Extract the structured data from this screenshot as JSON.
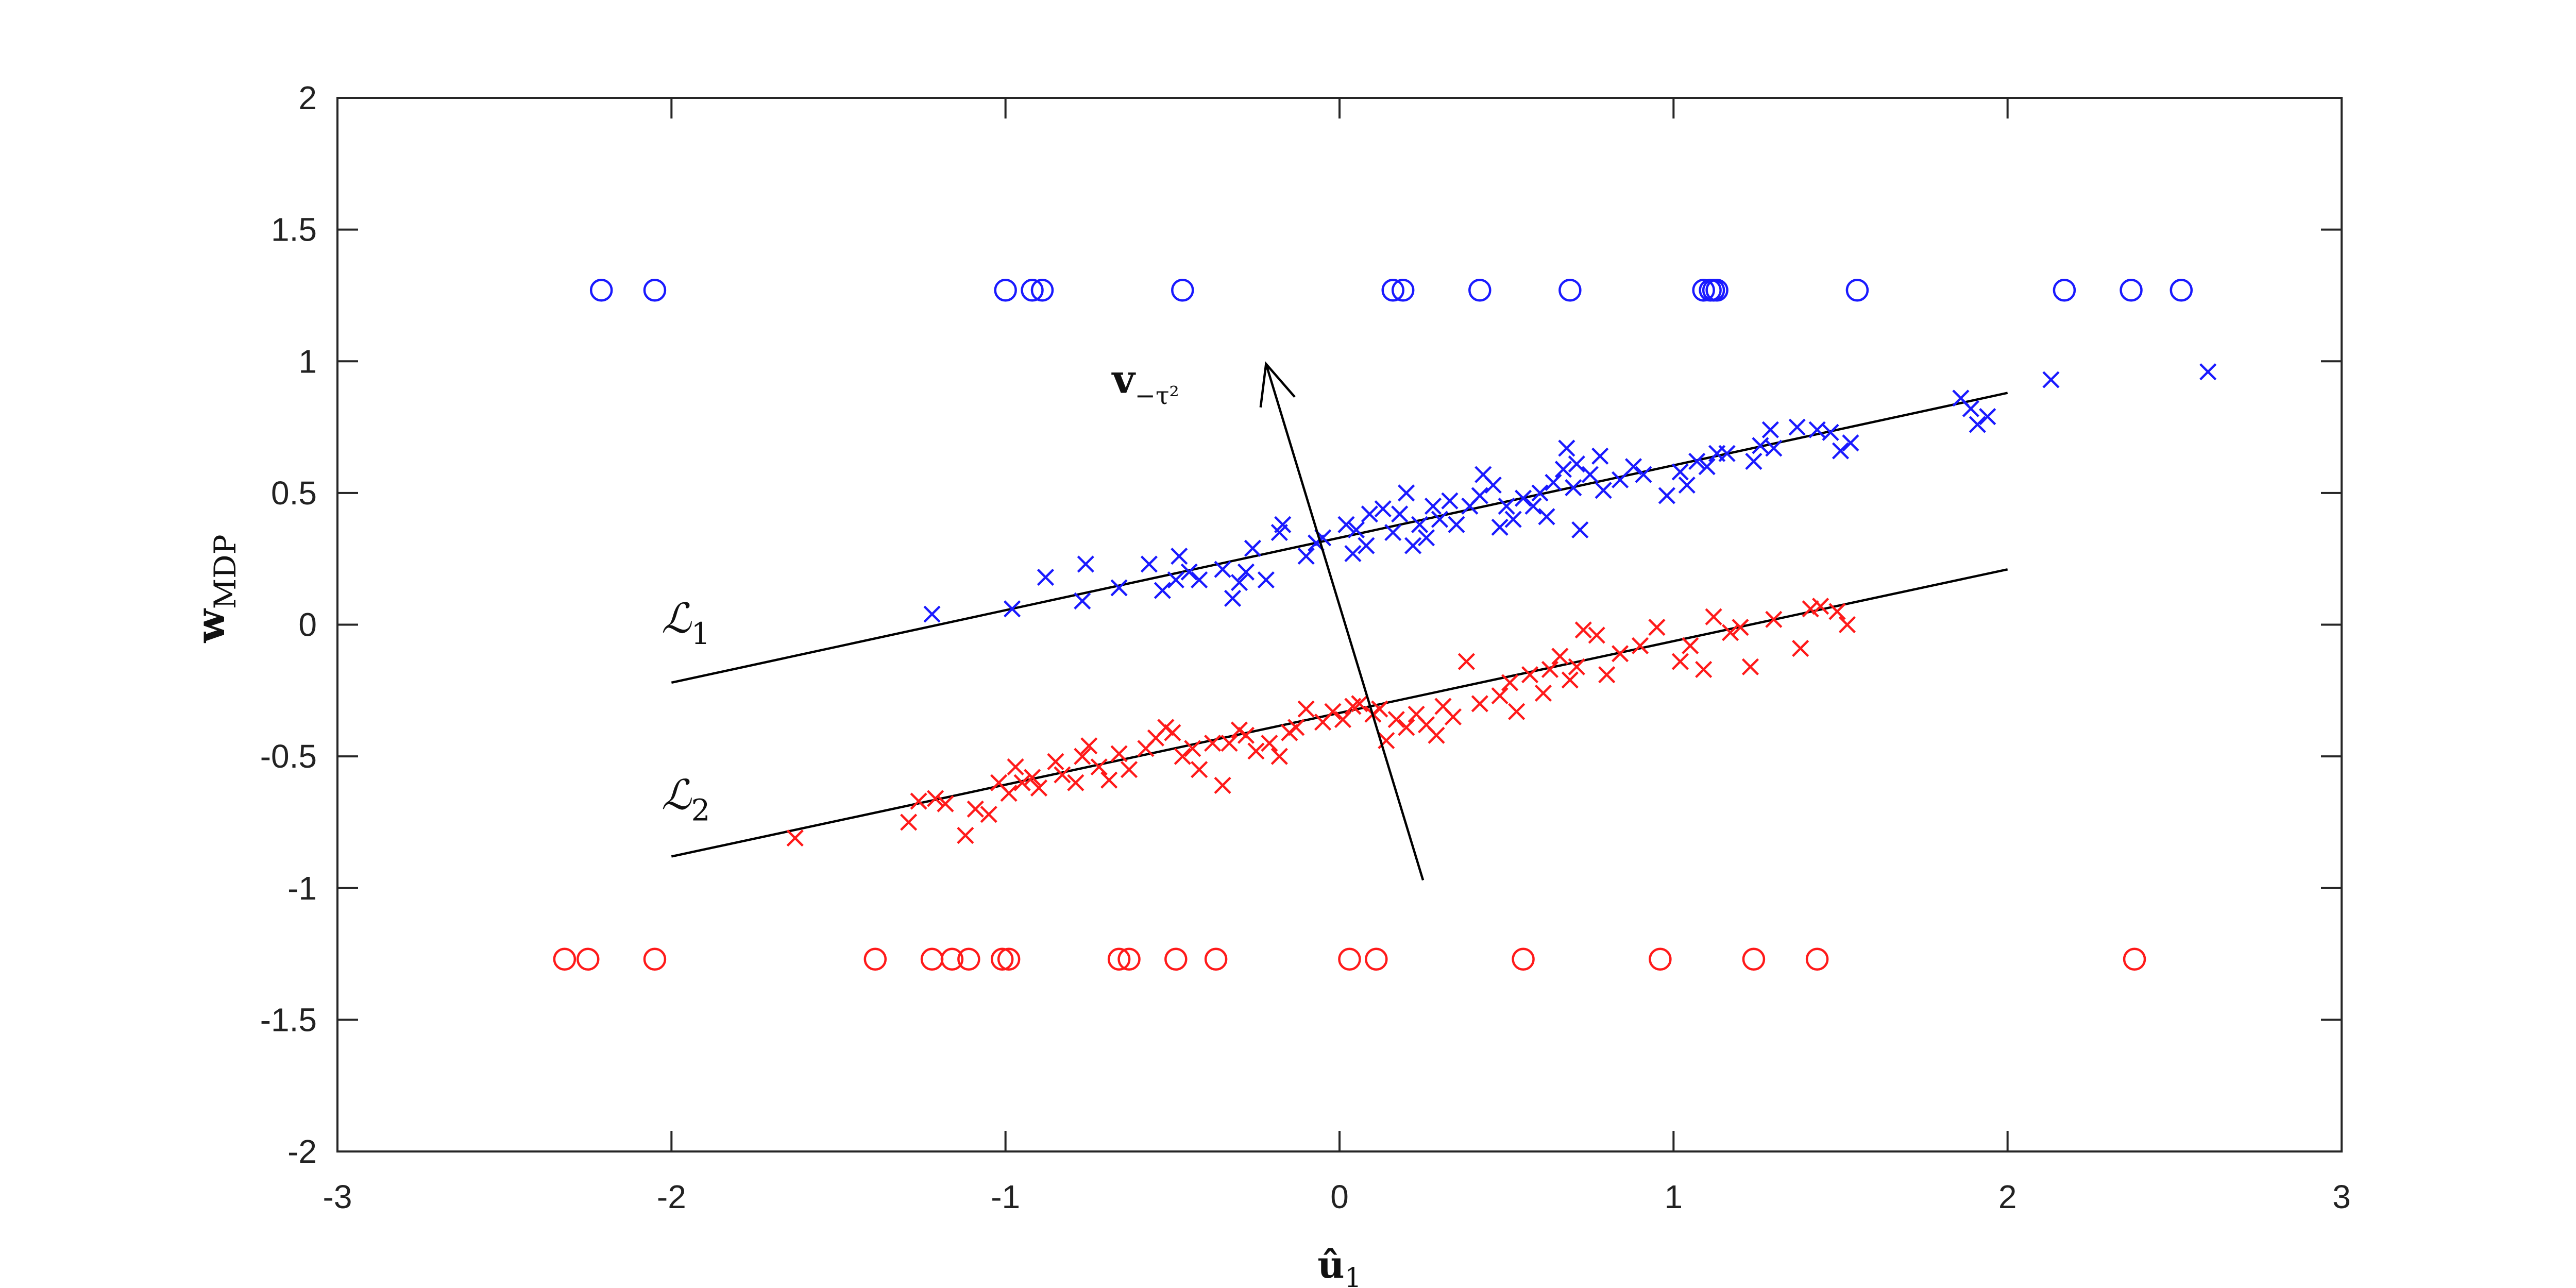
{
  "chart_data": {
    "type": "scatter",
    "title": "",
    "xlabel": "û",
    "xlabel_sub": "1",
    "ylabel": "w",
    "ylabel_sub": "MDP",
    "xlim": [
      -3,
      3
    ],
    "ylim": [
      -2,
      2
    ],
    "xticks": [
      -3,
      -2,
      -1,
      0,
      1,
      2,
      3
    ],
    "yticks": [
      -2,
      -1.5,
      -1,
      -0.5,
      0,
      0.5,
      1,
      1.5,
      2
    ],
    "grid": false,
    "legend": "none",
    "colors": {
      "blue": "#1a1aff",
      "red": "#ff1a1a",
      "black": "#000000"
    },
    "series": [
      {
        "marker": "circle",
        "color": "blue",
        "points": [
          [
            -2.21,
            1.27
          ],
          [
            -2.05,
            1.27
          ],
          [
            -1.0,
            1.27
          ],
          [
            -0.92,
            1.27
          ],
          [
            -0.89,
            1.27
          ],
          [
            -0.47,
            1.27
          ],
          [
            0.16,
            1.27
          ],
          [
            0.19,
            1.27
          ],
          [
            0.42,
            1.27
          ],
          [
            0.69,
            1.27
          ],
          [
            1.09,
            1.27
          ],
          [
            1.11,
            1.27
          ],
          [
            1.12,
            1.27
          ],
          [
            1.13,
            1.27
          ],
          [
            1.55,
            1.27
          ],
          [
            2.17,
            1.27
          ],
          [
            2.37,
            1.27
          ],
          [
            2.52,
            1.27
          ]
        ]
      },
      {
        "marker": "circle",
        "color": "red",
        "points": [
          [
            -2.32,
            -1.27
          ],
          [
            -2.25,
            -1.27
          ],
          [
            -2.05,
            -1.27
          ],
          [
            -1.39,
            -1.27
          ],
          [
            -1.22,
            -1.27
          ],
          [
            -1.16,
            -1.27
          ],
          [
            -1.11,
            -1.27
          ],
          [
            -1.01,
            -1.27
          ],
          [
            -0.99,
            -1.27
          ],
          [
            -0.66,
            -1.27
          ],
          [
            -0.63,
            -1.27
          ],
          [
            -0.49,
            -1.27
          ],
          [
            -0.37,
            -1.27
          ],
          [
            0.03,
            -1.27
          ],
          [
            0.11,
            -1.27
          ],
          [
            0.55,
            -1.27
          ],
          [
            0.96,
            -1.27
          ],
          [
            1.24,
            -1.27
          ],
          [
            1.43,
            -1.27
          ],
          [
            2.38,
            -1.27
          ]
        ]
      },
      {
        "marker": "x",
        "color": "blue",
        "points": [
          [
            -1.22,
            0.04
          ],
          [
            -0.98,
            0.06
          ],
          [
            -0.88,
            0.18
          ],
          [
            -0.77,
            0.09
          ],
          [
            -0.76,
            0.23
          ],
          [
            -0.66,
            0.14
          ],
          [
            -0.57,
            0.23
          ],
          [
            -0.53,
            0.13
          ],
          [
            -0.49,
            0.17
          ],
          [
            -0.48,
            0.26
          ],
          [
            -0.45,
            0.2
          ],
          [
            -0.42,
            0.17
          ],
          [
            -0.35,
            0.21
          ],
          [
            -0.32,
            0.1
          ],
          [
            -0.3,
            0.16
          ],
          [
            -0.28,
            0.2
          ],
          [
            -0.26,
            0.29
          ],
          [
            -0.22,
            0.17
          ],
          [
            -0.18,
            0.35
          ],
          [
            -0.17,
            0.38
          ],
          [
            -0.1,
            0.26
          ],
          [
            -0.07,
            0.31
          ],
          [
            -0.05,
            0.33
          ],
          [
            0.02,
            0.38
          ],
          [
            0.04,
            0.27
          ],
          [
            0.05,
            0.36
          ],
          [
            0.08,
            0.3
          ],
          [
            0.09,
            0.42
          ],
          [
            0.13,
            0.44
          ],
          [
            0.16,
            0.35
          ],
          [
            0.18,
            0.42
          ],
          [
            0.2,
            0.5
          ],
          [
            0.22,
            0.3
          ],
          [
            0.24,
            0.38
          ],
          [
            0.26,
            0.33
          ],
          [
            0.28,
            0.45
          ],
          [
            0.3,
            0.4
          ],
          [
            0.33,
            0.47
          ],
          [
            0.35,
            0.38
          ],
          [
            0.39,
            0.45
          ],
          [
            0.42,
            0.49
          ],
          [
            0.43,
            0.57
          ],
          [
            0.46,
            0.53
          ],
          [
            0.48,
            0.37
          ],
          [
            0.5,
            0.45
          ],
          [
            0.52,
            0.4
          ],
          [
            0.55,
            0.48
          ],
          [
            0.58,
            0.45
          ],
          [
            0.6,
            0.5
          ],
          [
            0.62,
            0.41
          ],
          [
            0.64,
            0.54
          ],
          [
            0.67,
            0.59
          ],
          [
            0.68,
            0.67
          ],
          [
            0.7,
            0.52
          ],
          [
            0.71,
            0.61
          ],
          [
            0.72,
            0.36
          ],
          [
            0.75,
            0.57
          ],
          [
            0.78,
            0.64
          ],
          [
            0.79,
            0.51
          ],
          [
            0.84,
            0.55
          ],
          [
            0.88,
            0.6
          ],
          [
            0.91,
            0.57
          ],
          [
            0.98,
            0.49
          ],
          [
            1.02,
            0.58
          ],
          [
            1.04,
            0.53
          ],
          [
            1.07,
            0.62
          ],
          [
            1.1,
            0.6
          ],
          [
            1.13,
            0.65
          ],
          [
            1.16,
            0.65
          ],
          [
            1.24,
            0.62
          ],
          [
            1.26,
            0.68
          ],
          [
            1.29,
            0.74
          ],
          [
            1.3,
            0.67
          ],
          [
            1.37,
            0.75
          ],
          [
            1.43,
            0.74
          ],
          [
            1.47,
            0.73
          ],
          [
            1.5,
            0.66
          ],
          [
            1.53,
            0.69
          ],
          [
            1.86,
            0.86
          ],
          [
            1.89,
            0.82
          ],
          [
            1.91,
            0.76
          ],
          [
            1.94,
            0.79
          ],
          [
            2.13,
            0.93
          ],
          [
            2.6,
            0.96
          ]
        ]
      },
      {
        "marker": "x",
        "color": "red",
        "points": [
          [
            -1.63,
            -0.81
          ],
          [
            -1.29,
            -0.75
          ],
          [
            -1.26,
            -0.67
          ],
          [
            -1.21,
            -0.66
          ],
          [
            -1.18,
            -0.68
          ],
          [
            -1.12,
            -0.8
          ],
          [
            -1.09,
            -0.7
          ],
          [
            -1.05,
            -0.72
          ],
          [
            -1.02,
            -0.6
          ],
          [
            -0.99,
            -0.64
          ],
          [
            -0.97,
            -0.54
          ],
          [
            -0.95,
            -0.6
          ],
          [
            -0.92,
            -0.58
          ],
          [
            -0.9,
            -0.62
          ],
          [
            -0.85,
            -0.52
          ],
          [
            -0.83,
            -0.57
          ],
          [
            -0.79,
            -0.6
          ],
          [
            -0.77,
            -0.5
          ],
          [
            -0.75,
            -0.46
          ],
          [
            -0.72,
            -0.54
          ],
          [
            -0.69,
            -0.59
          ],
          [
            -0.66,
            -0.49
          ],
          [
            -0.63,
            -0.55
          ],
          [
            -0.58,
            -0.47
          ],
          [
            -0.55,
            -0.43
          ],
          [
            -0.52,
            -0.39
          ],
          [
            -0.5,
            -0.41
          ],
          [
            -0.47,
            -0.5
          ],
          [
            -0.44,
            -0.47
          ],
          [
            -0.42,
            -0.55
          ],
          [
            -0.38,
            -0.45
          ],
          [
            -0.35,
            -0.61
          ],
          [
            -0.33,
            -0.45
          ],
          [
            -0.3,
            -0.4
          ],
          [
            -0.28,
            -0.42
          ],
          [
            -0.25,
            -0.48
          ],
          [
            -0.21,
            -0.45
          ],
          [
            -0.18,
            -0.5
          ],
          [
            -0.15,
            -0.41
          ],
          [
            -0.13,
            -0.39
          ],
          [
            -0.1,
            -0.32
          ],
          [
            -0.05,
            -0.37
          ],
          [
            -0.02,
            -0.33
          ],
          [
            0.01,
            -0.36
          ],
          [
            0.04,
            -0.31
          ],
          [
            0.06,
            -0.3
          ],
          [
            0.1,
            -0.34
          ],
          [
            0.12,
            -0.32
          ],
          [
            0.14,
            -0.44
          ],
          [
            0.17,
            -0.36
          ],
          [
            0.2,
            -0.39
          ],
          [
            0.23,
            -0.34
          ],
          [
            0.26,
            -0.38
          ],
          [
            0.29,
            -0.42
          ],
          [
            0.31,
            -0.31
          ],
          [
            0.34,
            -0.35
          ],
          [
            0.38,
            -0.14
          ],
          [
            0.42,
            -0.3
          ],
          [
            0.48,
            -0.27
          ],
          [
            0.51,
            -0.22
          ],
          [
            0.53,
            -0.33
          ],
          [
            0.57,
            -0.19
          ],
          [
            0.61,
            -0.26
          ],
          [
            0.63,
            -0.17
          ],
          [
            0.66,
            -0.12
          ],
          [
            0.69,
            -0.21
          ],
          [
            0.71,
            -0.16
          ],
          [
            0.73,
            -0.02
          ],
          [
            0.77,
            -0.04
          ],
          [
            0.8,
            -0.19
          ],
          [
            0.84,
            -0.11
          ],
          [
            0.9,
            -0.08
          ],
          [
            0.95,
            -0.01
          ],
          [
            1.02,
            -0.14
          ],
          [
            1.05,
            -0.08
          ],
          [
            1.09,
            -0.17
          ],
          [
            1.12,
            0.03
          ],
          [
            1.17,
            -0.03
          ],
          [
            1.2,
            -0.01
          ],
          [
            1.23,
            -0.16
          ],
          [
            1.3,
            0.02
          ],
          [
            1.38,
            -0.09
          ],
          [
            1.41,
            0.06
          ],
          [
            1.44,
            0.07
          ],
          [
            1.49,
            0.05
          ],
          [
            1.52,
            -0.0
          ]
        ]
      }
    ],
    "lines": [
      {
        "name": "L1",
        "label_main": "ℒ",
        "label_sub": "1",
        "from": [
          -2.0,
          -0.22
        ],
        "to": [
          2.0,
          0.88
        ],
        "label_at": [
          -2.03,
          -0.03
        ]
      },
      {
        "name": "L2",
        "label_main": "ℒ",
        "label_sub": "2",
        "from": [
          -2.0,
          -0.88
        ],
        "to": [
          2.0,
          0.21
        ],
        "label_at": [
          -2.03,
          -0.7
        ]
      }
    ],
    "arrow": {
      "from": [
        0.25,
        -0.97
      ],
      "to": [
        -0.22,
        0.99
      ],
      "label_main": "v",
      "label_sub": "−τ²",
      "label_at": [
        -0.48,
        0.88
      ]
    }
  }
}
